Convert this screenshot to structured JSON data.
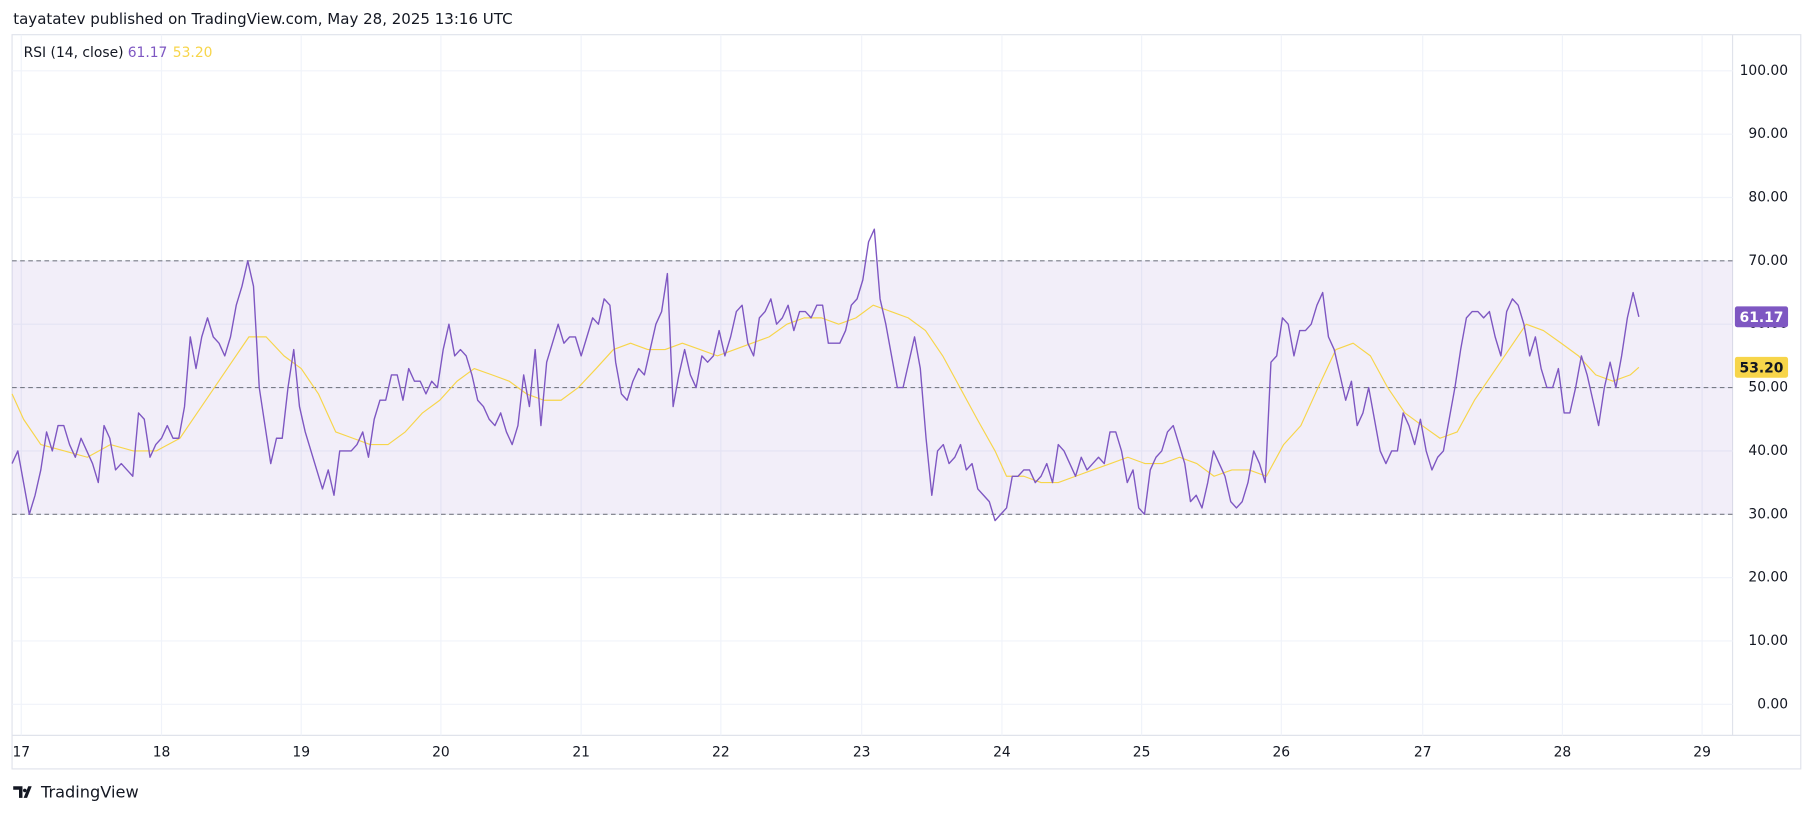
{
  "header": "tayatatev published on TradingView.com, May 28, 2025 13:16 UTC",
  "footer": {
    "brand": "TradingView"
  },
  "chart_data": {
    "type": "line",
    "indicator": "RSI (14, close)",
    "xlim": [
      -2,
      297.3
    ],
    "xticks": [
      {
        "value": -0.4,
        "label": "17"
      },
      {
        "value": 24,
        "label": "18"
      },
      {
        "value": 48.3,
        "label": "19"
      },
      {
        "value": 72.6,
        "label": "20"
      },
      {
        "value": 97,
        "label": "21"
      },
      {
        "value": 121.3,
        "label": "22"
      },
      {
        "value": 145.8,
        "label": "23"
      },
      {
        "value": 170.2,
        "label": "24"
      },
      {
        "value": 194.5,
        "label": "25"
      },
      {
        "value": 218.8,
        "label": "26"
      },
      {
        "value": 243.4,
        "label": "27"
      },
      {
        "value": 267.7,
        "label": "28"
      },
      {
        "value": 292,
        "label": "29"
      }
    ],
    "ylim": [
      -4.9,
      105.7
    ],
    "yticks": [
      {
        "value": 0,
        "label": "0.00"
      },
      {
        "value": 10,
        "label": "10.00"
      },
      {
        "value": 20,
        "label": "20.00"
      },
      {
        "value": 30,
        "label": "30.00"
      },
      {
        "value": 40,
        "label": "40.00"
      },
      {
        "value": 50,
        "label": "50.00"
      },
      {
        "value": 60,
        "label": "60.00"
      },
      {
        "value": 70,
        "label": "70.00"
      },
      {
        "value": 80,
        "label": "80.00"
      },
      {
        "value": 90,
        "label": "90.00"
      },
      {
        "value": 100,
        "label": "100.00"
      }
    ],
    "grid": true,
    "band": [
      30,
      70
    ],
    "band_color": "#7e57c2",
    "midline": 50,
    "series": [
      {
        "color": "#7e57c2",
        "last_label": "61.17",
        "x": [
          -2,
          -1,
          0,
          1,
          2,
          3,
          4,
          5,
          6,
          7,
          8,
          9,
          10,
          11,
          12,
          13,
          14,
          15,
          16,
          17,
          18,
          19,
          20,
          21,
          22,
          23,
          24,
          25,
          26,
          27,
          28,
          29,
          30,
          31,
          32,
          33,
          34,
          35,
          36,
          37,
          38,
          39,
          40,
          41,
          42,
          43,
          44,
          45,
          46,
          47,
          48,
          49,
          50,
          51,
          52,
          53,
          54,
          55,
          56,
          57,
          58,
          59,
          60,
          61,
          62,
          63,
          64,
          65,
          66,
          67,
          68,
          69,
          70,
          71,
          72,
          73,
          74,
          75,
          76,
          77,
          78,
          79,
          80,
          81,
          82,
          83,
          84,
          85,
          86,
          87,
          88,
          89,
          90,
          91,
          92,
          93,
          94,
          95,
          96,
          97,
          98,
          99,
          100,
          101,
          102,
          103,
          104,
          105,
          106,
          107,
          108,
          109,
          110,
          111,
          112,
          113,
          114,
          115,
          116,
          117,
          118,
          119,
          120,
          121,
          122,
          123,
          124,
          125,
          126,
          127,
          128,
          129,
          130,
          131,
          132,
          133,
          134,
          135,
          136,
          137,
          138,
          139,
          140,
          141,
          142,
          143,
          144,
          145,
          146,
          147,
          148,
          149,
          150,
          151,
          152,
          153,
          154,
          155,
          156,
          157,
          158,
          159,
          160,
          161,
          162,
          163,
          164,
          165,
          166,
          167,
          168,
          169,
          170,
          171,
          172,
          173,
          174,
          175,
          176,
          177,
          178,
          179,
          180,
          181,
          182,
          183,
          184,
          185,
          186,
          187,
          188,
          189,
          190,
          191,
          192,
          193,
          194,
          195,
          196,
          197,
          198,
          199,
          200,
          201,
          202,
          203,
          204,
          205,
          206,
          207,
          208,
          209,
          210,
          211,
          212,
          213,
          214,
          215,
          216,
          217,
          218,
          219,
          220,
          221,
          222,
          223,
          224,
          225,
          226,
          227,
          228,
          229,
          230,
          231,
          232,
          233,
          234,
          235,
          236,
          237,
          238,
          239,
          240,
          241,
          242,
          243,
          244,
          245,
          246,
          247,
          248,
          249,
          250,
          251,
          252,
          253,
          254,
          255,
          256,
          257,
          258,
          259,
          260,
          261,
          262,
          263,
          264,
          265,
          266,
          267,
          268,
          269,
          270,
          271,
          272,
          273,
          274,
          275,
          276,
          277,
          278,
          279,
          280,
          281
        ],
        "values": [
          38,
          40,
          35,
          30,
          33,
          37,
          43,
          40,
          44,
          44,
          41,
          39,
          42,
          40,
          38,
          35,
          44,
          42,
          37,
          38,
          37,
          36,
          46,
          45,
          39,
          41,
          42,
          44,
          42,
          42,
          47,
          58,
          53,
          58,
          61,
          58,
          57,
          55,
          58,
          63,
          66,
          70,
          66,
          50,
          44,
          38,
          42,
          42,
          50,
          56,
          47,
          43,
          40,
          37,
          34,
          37,
          33,
          40,
          40,
          40,
          41,
          43,
          39,
          45,
          48,
          48,
          52,
          52,
          48,
          53,
          51,
          51,
          49,
          51,
          50,
          56,
          60,
          55,
          56,
          55,
          52,
          48,
          47,
          45,
          44,
          46,
          43,
          41,
          44,
          52,
          47,
          56,
          44,
          54,
          57,
          60,
          57,
          58,
          58,
          55,
          58,
          61,
          60,
          64,
          63,
          54,
          49,
          48,
          51,
          53,
          52,
          56,
          60,
          62,
          68,
          47,
          52,
          56,
          52,
          50,
          55,
          54,
          55,
          59,
          55,
          58,
          62,
          63,
          57,
          55,
          61,
          62,
          64,
          60,
          61,
          63,
          59,
          62,
          62,
          61,
          63,
          63,
          57,
          57,
          57,
          59,
          63,
          64,
          67,
          73,
          75,
          64,
          60,
          55,
          50,
          50,
          54,
          58,
          53,
          42,
          33,
          40,
          41,
          38,
          39,
          41,
          37,
          38,
          34,
          33,
          32,
          29,
          30,
          31,
          36,
          36,
          37,
          37,
          35,
          36,
          38,
          35,
          41,
          40,
          38,
          36,
          39,
          37,
          38,
          39,
          38,
          43,
          43,
          40,
          35,
          37,
          31,
          30,
          37,
          39,
          40,
          43,
          44,
          41,
          38,
          32,
          33,
          31,
          35,
          40,
          38,
          36,
          32,
          31,
          32,
          35,
          40,
          38,
          35,
          54,
          55,
          61,
          60,
          55,
          59,
          59,
          60,
          63,
          65,
          58,
          56,
          52,
          48,
          51,
          44,
          46,
          50,
          45,
          40,
          38,
          40,
          40,
          46,
          44,
          41,
          45,
          40,
          37,
          39,
          40,
          45,
          50,
          56,
          61,
          62,
          62,
          61,
          62,
          58,
          55,
          62,
          64,
          63,
          60,
          55,
          58,
          53,
          50,
          50,
          53,
          46,
          46,
          50,
          55,
          52,
          48,
          44,
          50,
          54,
          50,
          55,
          61,
          65,
          61.17
        ]
      },
      {
        "color": "#f7d54a",
        "last_label": "53.20",
        "x": [
          -2,
          0,
          3,
          7.1,
          11.1,
          15.1,
          19.1,
          23.1,
          27.2,
          30.2,
          33.2,
          36.2,
          39.2,
          42.2,
          45.3,
          48.3,
          51.3,
          54.3,
          57.3,
          60.3,
          63.4,
          66.4,
          69.4,
          72.4,
          75.4,
          78.4,
          81.5,
          84.5,
          87.5,
          90.5,
          93.5,
          96.5,
          99.6,
          102.6,
          105.6,
          108.6,
          111.6,
          114.6,
          117.7,
          120.7,
          123.7,
          126.7,
          129.7,
          132.8,
          135.8,
          138.8,
          141.8,
          144.8,
          147.8,
          150.9,
          153.9,
          156.9,
          159.9,
          162.9,
          165.9,
          169,
          171,
          174,
          177,
          180,
          183,
          186,
          189.1,
          192.1,
          195.1,
          198.1,
          201.1,
          204.1,
          207.1,
          210.2,
          213.2,
          216.2,
          219.2,
          222.2,
          225.2,
          228.3,
          231.3,
          234.3,
          237.3,
          240.3,
          243.3,
          246.4,
          249.4,
          252.4,
          255.4,
          258.4,
          261.4,
          264.4,
          267.5,
          270.5,
          273.5,
          276.5,
          279.5,
          281
        ],
        "values": [
          49,
          45,
          41,
          40,
          39,
          41,
          40,
          40,
          42,
          46,
          50,
          54,
          58,
          58,
          55,
          53,
          49,
          43,
          42,
          41,
          41,
          43,
          46,
          48,
          51,
          53,
          52,
          51,
          49,
          48,
          48,
          50,
          53,
          56,
          57,
          56,
          56,
          57,
          56,
          55,
          56,
          57,
          58,
          60,
          61,
          61,
          60,
          61,
          63,
          62,
          61,
          59,
          55,
          50,
          45,
          40,
          36,
          36,
          35,
          35,
          36,
          37,
          38,
          39,
          38,
          38,
          39,
          38,
          36,
          37,
          37,
          36,
          41,
          44,
          50,
          56,
          57,
          55,
          50,
          46,
          44,
          42,
          43,
          48,
          52,
          56,
          60,
          59,
          57,
          55,
          52,
          51,
          52,
          53.2
        ]
      }
    ]
  }
}
